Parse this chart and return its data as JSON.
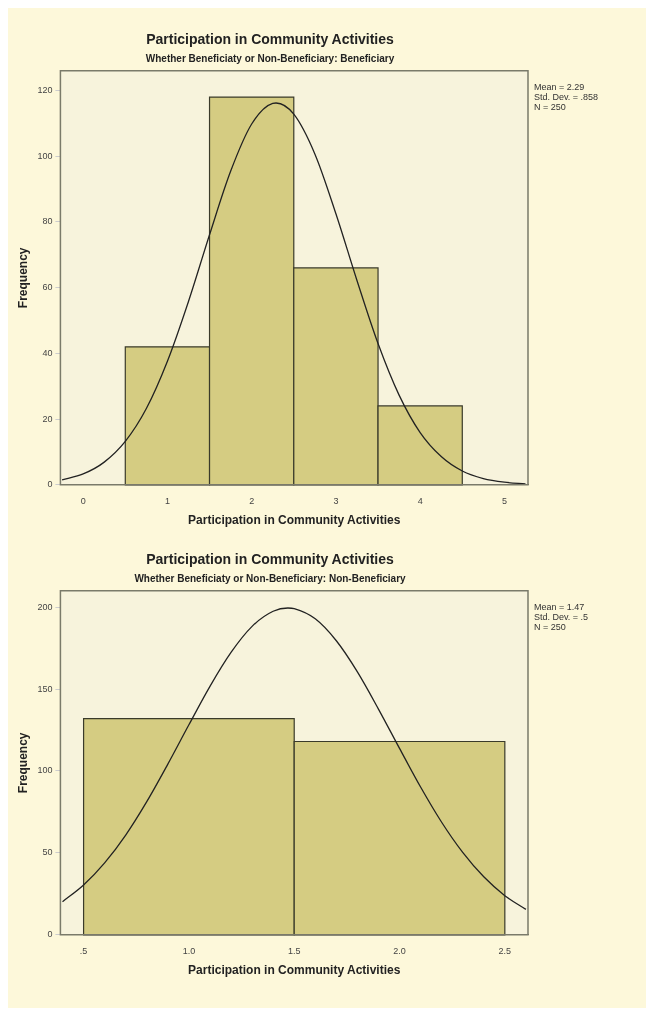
{
  "chart_data": [
    {
      "type": "histogram",
      "title": "Participation in Community Activities",
      "subtitle": "Whether Beneficiaty or Non-Beneficiary: Beneficiary",
      "xlabel": "Participation in Community Activities",
      "ylabel": "Frequency",
      "bins": [
        0.5,
        1.5,
        2.5,
        3.5,
        4.5
      ],
      "values": [
        42,
        118,
        66,
        24
      ],
      "color": "#d5cc82",
      "series": [
        {
          "type": "line",
          "color": "#222222",
          "x": [
            -0.25,
            0,
            0.25,
            0.5,
            0.75,
            1,
            1.25,
            1.5,
            1.75,
            2,
            2.25,
            2.29,
            2.5,
            2.75,
            3,
            3.25,
            3.5,
            3.75,
            4,
            4.25,
            4.5,
            4.75,
            5,
            5.25
          ],
          "values": [
            1.5,
            3.3,
            6.9,
            13.2,
            23.2,
            37.6,
            55.8,
            76.1,
            95.4,
            109.8,
            116.1,
            116.2,
            112.8,
            100.7,
            82.5,
            62.2,
            43,
            27.3,
            15.9,
            8.6,
            4.2,
            1.9,
            0.8,
            0.3
          ]
        }
      ],
      "xlim": [
        -0.27,
        5.28
      ],
      "xticks": [
        0,
        1,
        2,
        3,
        4,
        5
      ],
      "ylim": [
        0,
        126
      ],
      "yticks": [
        0,
        20,
        40,
        60,
        80,
        100,
        120
      ],
      "grid": false,
      "marker": "none",
      "annotations": [
        "Mean = 2.29",
        "Std. Dev. = .858",
        "N = 250"
      ]
    },
    {
      "type": "histogram",
      "title": "Participation in Community Activities",
      "subtitle": "Whether Beneficiaty or Non-Beneficiary: Non-Beneficiary",
      "xlabel": "Participation in Community Activities",
      "ylabel": "Frequency",
      "bins": [
        0.5,
        1.5,
        2.5
      ],
      "values": [
        132,
        118
      ],
      "color": "#d5cc82",
      "series": [
        {
          "type": "line",
          "color": "#222222",
          "x": [
            0.4,
            0.5,
            0.6,
            0.7,
            0.8,
            0.9,
            1,
            1.1,
            1.2,
            1.3,
            1.4,
            1.47,
            1.5,
            1.6,
            1.7,
            1.8,
            1.9,
            2,
            2.1,
            2.2,
            2.3,
            2.4,
            2.5,
            2.6
          ],
          "values": [
            20.2,
            30.4,
            43.9,
            60.9,
            81.3,
            104.2,
            128.2,
            151.7,
            172.4,
            188.3,
            197.5,
            199.5,
            199.1,
            192.9,
            179.5,
            160.5,
            137.8,
            113.8,
            90.2,
            68.7,
            50.3,
            35.4,
            23.9,
            15.5
          ]
        }
      ],
      "xlim": [
        0.39,
        2.61
      ],
      "xticks": [
        {
          "value": 0.5,
          "label": ".5"
        },
        {
          "value": 1,
          "label": "1.0"
        },
        {
          "value": 1.5,
          "label": "1.5"
        },
        {
          "value": 2,
          "label": "2.0"
        },
        {
          "value": 2.5,
          "label": "2.5"
        }
      ],
      "ylim": [
        0,
        210
      ],
      "yticks": [
        0,
        50,
        100,
        150,
        200
      ],
      "grid": false,
      "marker": "none",
      "annotations": [
        "Mean = 1.47",
        "Std. Dev. = .5",
        "N = 250"
      ]
    }
  ]
}
